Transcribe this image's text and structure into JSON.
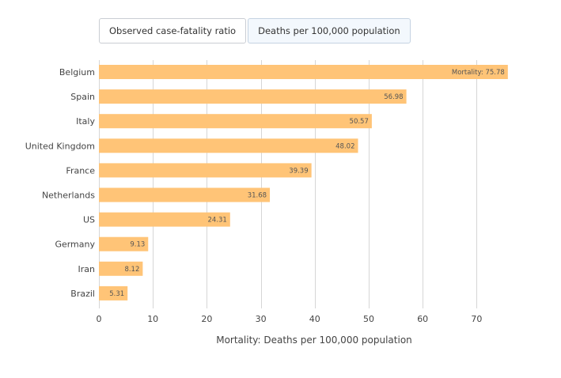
{
  "tabs": [
    {
      "label": "Observed case-fatality ratio",
      "active": false
    },
    {
      "label": "Deaths per 100,000 population",
      "active": true
    }
  ],
  "chart_data": {
    "type": "bar",
    "orientation": "horizontal",
    "categories": [
      "Belgium",
      "Spain",
      "Italy",
      "United Kingdom",
      "France",
      "Netherlands",
      "US",
      "Germany",
      "Iran",
      "Brazil"
    ],
    "values": [
      75.78,
      56.98,
      50.57,
      48.02,
      39.39,
      31.68,
      24.31,
      9.13,
      8.12,
      5.31
    ],
    "data_labels": [
      "Mortality: 75.78",
      "56.98",
      "50.57",
      "48.02",
      "39.39",
      "31.68",
      "24.31",
      "9.13",
      "8.12",
      "5.31"
    ],
    "xlabel": "Mortality: Deaths per 100,000 population",
    "xlim": [
      0,
      76
    ],
    "xticks": [
      0,
      10,
      20,
      30,
      40,
      50,
      60,
      70
    ],
    "grid": true,
    "bar_color": "#ffc477",
    "grid_color": "#d6d6d6"
  }
}
